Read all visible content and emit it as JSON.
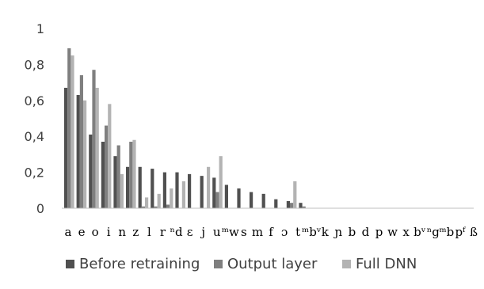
{
  "colors": {
    "Before retraining": "#505050",
    "Output layer": "#7f7f7f",
    "Full DNN": "#b3b3b3",
    "axis": "#bfbfbf",
    "text": "#404040"
  },
  "chart_data": {
    "type": "bar",
    "title": "",
    "xlabel": "",
    "ylabel": "",
    "ylim": [
      0,
      1
    ],
    "yticks": [
      "0",
      "0,2",
      "0,4",
      "0,6",
      "0,8",
      "1"
    ],
    "grid": false,
    "legend_position": "bottom",
    "categories": [
      "a",
      "e",
      "o",
      "i",
      "n",
      "z",
      "l",
      "r",
      "ⁿd",
      "ɛ",
      "j",
      "u",
      "ᵐw",
      "s",
      "m",
      "f",
      "ɔ",
      "t",
      "ᵐbᵛ",
      "k",
      "ɲ",
      "b",
      "d",
      "p",
      "w",
      "x",
      "bᵛ",
      "ⁿg",
      "ᵐb",
      "pᶠ",
      "ß"
    ],
    "x_tick_labels": [
      "a",
      "e",
      "o",
      "i",
      "n",
      "z",
      "l",
      "r",
      "ⁿd",
      "ɛ",
      "j",
      "u",
      "ᵐw",
      "s",
      "m",
      "f",
      "ɔ",
      "t",
      "ᵐbᵛ",
      "k",
      "ɲ",
      "b",
      "d",
      "p",
      "w",
      "x",
      "bᵛ",
      "ⁿg",
      "ᵐb",
      "pᶠ",
      "ß"
    ],
    "series": [
      {
        "name": "Before retraining",
        "values": [
          0.67,
          0.63,
          0.41,
          0.37,
          0.29,
          0.23,
          0.23,
          0.22,
          0.2,
          0.2,
          0.19,
          0.18,
          0.17,
          0.13,
          0.11,
          0.09,
          0.08,
          0.05,
          0.04,
          0.03,
          0,
          0,
          0,
          0,
          0,
          0,
          0,
          0,
          0,
          0,
          0
        ]
      },
      {
        "name": "Output layer",
        "values": [
          0.89,
          0.74,
          0.77,
          0.46,
          0.35,
          0.37,
          0.01,
          0.01,
          0.02,
          0,
          0,
          0,
          0.09,
          0,
          0,
          0,
          0,
          0,
          0.03,
          0.01,
          0,
          0,
          0,
          0,
          0,
          0,
          0,
          0,
          0,
          0,
          0
        ]
      },
      {
        "name": "Full DNN",
        "values": [
          0.85,
          0.6,
          0.67,
          0.58,
          0.19,
          0.38,
          0.06,
          0.08,
          0.11,
          0.15,
          0,
          0.23,
          0.29,
          0,
          0,
          0,
          0,
          0,
          0.15,
          0,
          0,
          0,
          0,
          0,
          0,
          0,
          0,
          0,
          0,
          0,
          0
        ]
      }
    ]
  }
}
